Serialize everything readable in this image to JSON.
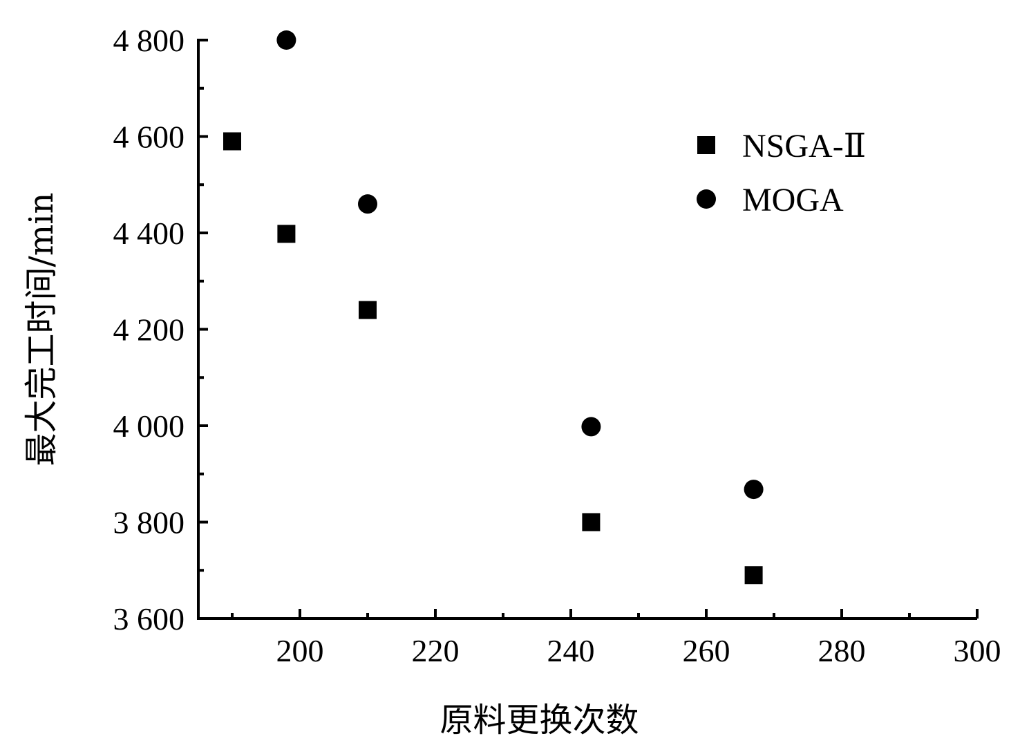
{
  "chart_data": {
    "type": "scatter",
    "title": "",
    "xlabel": "原料更换次数",
    "ylabel": "最大完工时间/min",
    "xlim": [
      185,
      300
    ],
    "ylim": [
      3600,
      4800
    ],
    "x_ticks": [
      200,
      220,
      240,
      260,
      280,
      300
    ],
    "y_ticks": [
      3600,
      3800,
      4000,
      4200,
      4400,
      4600,
      4800
    ],
    "x_tick_labels": [
      "200",
      "220",
      "240",
      "260",
      "280",
      "300"
    ],
    "y_tick_labels": [
      "3 600",
      "3 800",
      "4 000",
      "4 200",
      "4 400",
      "4 600",
      "4 800"
    ],
    "grid": false,
    "legend_position": "top-right",
    "series": [
      {
        "name": "NSGA-Ⅱ",
        "marker": "square",
        "color": "#000000",
        "points": [
          {
            "x": 190,
            "y": 4590
          },
          {
            "x": 198,
            "y": 4398
          },
          {
            "x": 210,
            "y": 4240
          },
          {
            "x": 243,
            "y": 3800
          },
          {
            "x": 267,
            "y": 3690
          }
        ]
      },
      {
        "name": "MOGA",
        "marker": "circle",
        "color": "#000000",
        "points": [
          {
            "x": 198,
            "y": 4800
          },
          {
            "x": 210,
            "y": 4460
          },
          {
            "x": 243,
            "y": 3998
          },
          {
            "x": 267,
            "y": 3868
          }
        ]
      }
    ]
  }
}
